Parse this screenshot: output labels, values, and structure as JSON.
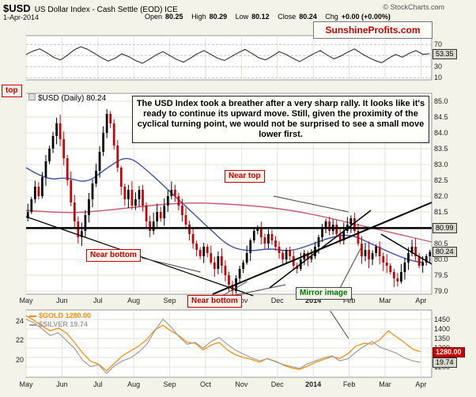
{
  "header": {
    "symbol": "$USD",
    "title": "US Dollar Index - Cash Settle (EOD) ICE",
    "copyright": "© StockCharts.com",
    "date": "1-Apr-2014",
    "quote": {
      "open_label": "Open",
      "open": "80.25",
      "high_label": "High",
      "high": "80.29",
      "low_label": "Low",
      "low": "80.12",
      "close_label": "Close",
      "close": "80.24",
      "chg_label": "Chg",
      "chg": "+0.00 (+0.00%)"
    },
    "brand": "SunshineProfits.com"
  },
  "legends": {
    "usd": "$USD (Daily) 80.24",
    "gold": "$GOLD 1280.00",
    "silver": "$SILVER 19.74"
  },
  "badges": {
    "rsi": "53.35",
    "hline": "80.99",
    "last": "80.24",
    "gold": "1280.00",
    "silver": "19.74"
  },
  "annotations": {
    "top_label": "top",
    "near_top": "Near top",
    "near_bottom_1": "Near bottom",
    "near_bottom_2": "Near bottom",
    "mirror": "Mirror image",
    "commentary": "The USD Index took a breather after a very sharp rally. It looks like it's ready to continue its upward move. Still, given the proximity of the cyclical turning point, we would not be surprised to see a small move lower first."
  },
  "colors": {
    "accent_red": "#cc0000",
    "candle_up": "#000000",
    "candle_down": "#cc0000",
    "ma_fast": "#3c52b0",
    "ma_slow": "#c85a70",
    "gold": "#ff8800",
    "silver": "#9e9e9e",
    "indicator": "#222222",
    "grid": "#e3e3d9",
    "panel_border": "#999999"
  },
  "chart_data": [
    {
      "type": "line",
      "name": "momentum-indicator",
      "position": "top-panel",
      "ylim": [
        86,
        6
      ],
      "yticks": [
        70,
        50,
        30,
        10
      ],
      "last_value": 53.35,
      "values": [
        52,
        58,
        62,
        55,
        47,
        42,
        50,
        60,
        66,
        61,
        54,
        46,
        40,
        45,
        53,
        48,
        41,
        36,
        43,
        51,
        57,
        50,
        43,
        38,
        45,
        53,
        59,
        52,
        45,
        41,
        48,
        55,
        61,
        54,
        46,
        42,
        49,
        57,
        52,
        45,
        39,
        46,
        53,
        59,
        51,
        44,
        49,
        56,
        62,
        54,
        47,
        41,
        37,
        45,
        52,
        47,
        54,
        59,
        52,
        53.35
      ]
    },
    {
      "type": "candlestick",
      "name": "usd-daily-price",
      "position": "main-panel",
      "title": "$USD (Daily) 80.24",
      "ylim": [
        85.25,
        78.9
      ],
      "yticks": [
        "85.0",
        "84.5",
        "84.0",
        "83.5",
        "83.0",
        "82.5",
        "82.0",
        "81.5",
        "81.0",
        "80.5",
        "80.0",
        "79.5",
        "79.0"
      ],
      "first_open": 81.3,
      "last_close": 80.24,
      "closes": [
        81.5,
        81.9,
        82.3,
        82.0,
        82.6,
        83.1,
        83.5,
        83.9,
        84.3,
        83.8,
        83.2,
        82.5,
        81.8,
        81.2,
        80.7,
        80.9,
        81.4,
        81.9,
        82.4,
        82.8,
        83.4,
        84.0,
        84.6,
        84.3,
        83.6,
        82.9,
        82.3,
        81.9,
        82.2,
        81.7,
        81.9,
        82.2,
        81.7,
        81.2,
        80.9,
        81.2,
        81.5,
        81.3,
        81.7,
        82.0,
        82.2,
        82.0,
        81.7,
        81.4,
        81.1,
        80.8,
        80.5,
        80.3,
        80.1,
        80.4,
        80.2,
        79.9,
        79.7,
        80.1,
        79.8,
        79.5,
        79.2,
        79.0,
        79.4,
        79.7,
        79.9,
        80.2,
        80.6,
        80.9,
        81.0,
        80.7,
        80.5,
        80.8,
        80.6,
        80.4,
        80.2,
        80.0,
        80.3,
        80.1,
        79.8,
        79.7,
        80.0,
        80.2,
        80.0,
        80.1,
        80.4,
        80.7,
        81.0,
        81.2,
        80.9,
        81.1,
        80.8,
        80.6,
        80.9,
        81.1,
        81.3,
        80.9,
        80.5,
        80.1,
        80.3,
        80.0,
        80.2,
        80.4,
        80.1,
        79.9,
        79.8,
        79.6,
        79.4,
        79.3,
        79.6,
        79.9,
        80.2,
        80.4,
        80.1,
        79.8,
        79.9,
        80.1,
        80.24
      ],
      "month_ticks": [
        {
          "label": "May",
          "i": 0
        },
        {
          "label": "Jun",
          "i": 10
        },
        {
          "label": "Jul",
          "i": 20
        },
        {
          "label": "Aug",
          "i": 30
        },
        {
          "label": "Sep",
          "i": 40
        },
        {
          "label": "Oct",
          "i": 50
        },
        {
          "label": "Nov",
          "i": 60
        },
        {
          "label": "Dec",
          "i": 70
        },
        {
          "label": "2014",
          "i": 80,
          "bold": true
        },
        {
          "label": "Feb",
          "i": 90
        },
        {
          "label": "Mar",
          "i": 100
        },
        {
          "label": "Apr",
          "i": 110
        }
      ],
      "ma_fast_points": [
        [
          0,
          82.9
        ],
        [
          0.05,
          82.5
        ],
        [
          0.1,
          82.6
        ],
        [
          0.15,
          82.4
        ],
        [
          0.2,
          82.9
        ],
        [
          0.25,
          83.3
        ],
        [
          0.3,
          82.8
        ],
        [
          0.35,
          82.2
        ],
        [
          0.4,
          81.6
        ],
        [
          0.45,
          81.0
        ],
        [
          0.5,
          80.4
        ],
        [
          0.55,
          80.25
        ],
        [
          0.6,
          80.35
        ],
        [
          0.65,
          80.25
        ],
        [
          0.7,
          80.45
        ],
        [
          0.75,
          80.7
        ],
        [
          0.8,
          80.8
        ],
        [
          0.85,
          80.5
        ],
        [
          0.9,
          80.2
        ],
        [
          0.95,
          79.95
        ],
        [
          0.98,
          79.9
        ]
      ],
      "ma_slow_points": [
        [
          0,
          81.55
        ],
        [
          0.1,
          81.45
        ],
        [
          0.2,
          81.55
        ],
        [
          0.3,
          81.7
        ],
        [
          0.4,
          81.8
        ],
        [
          0.5,
          81.75
        ],
        [
          0.6,
          81.65
        ],
        [
          0.7,
          81.45
        ],
        [
          0.8,
          81.15
        ],
        [
          0.9,
          80.85
        ],
        [
          1,
          80.55
        ]
      ],
      "hline": {
        "value": 80.99,
        "w": 2.5
      },
      "trendlines": [
        {
          "x1": 0.46,
          "v1": 78.9,
          "x2": 1.0,
          "v2": 81.8,
          "w": 2
        },
        {
          "x1": 0.0,
          "v1": 81.35,
          "x2": 0.56,
          "v2": 78.85,
          "w": 1.2
        },
        {
          "x1": 0.6,
          "v1": 79.1,
          "x2": 0.85,
          "v2": 81.55,
          "w": 1.5
        },
        {
          "x1": 0.875,
          "v1": 80.8,
          "x2": 1.0,
          "v2": 79.85,
          "w": 1.5
        }
      ],
      "pointer_lines": [
        {
          "x1": 0.61,
          "v1": 82.0,
          "x2": 0.795,
          "v2": 81.5
        },
        {
          "x1": 0.285,
          "v1": 80.05,
          "x2": 0.43,
          "v2": 79.6
        },
        {
          "x1": 0.47,
          "v1": 78.75,
          "x2": 0.545,
          "v2": 79.3
        },
        {
          "x1": 0.47,
          "v1": 78.75,
          "x2": 0.64,
          "v2": 79.2
        },
        {
          "x1": 0.77,
          "v1": 79.0,
          "x2": 0.825,
          "v2": 80.35
        }
      ]
    },
    {
      "type": "line",
      "name": "gold-silver-overlay",
      "position": "bottom-panel",
      "right_ylim": [
        1500,
        1146
      ],
      "right_yticks": [
        1450,
        1400,
        1350,
        1300,
        1250,
        1200
      ],
      "left_ylim": [
        25.14,
        18.2
      ],
      "left_yticks": [
        24,
        22,
        20
      ],
      "series": [
        {
          "name": "$GOLD",
          "axis": "right",
          "last": 1280.0,
          "values": [
            1470,
            1445,
            1415,
            1390,
            1405,
            1380,
            1330,
            1275,
            1230,
            1215,
            1180,
            1220,
            1260,
            1285,
            1310,
            1345,
            1395,
            1420,
            1390,
            1365,
            1330,
            1325,
            1290,
            1315,
            1330,
            1290,
            1265,
            1250,
            1240,
            1225,
            1245,
            1230,
            1210,
            1195,
            1187,
            1205,
            1225,
            1240,
            1255,
            1245,
            1270,
            1310,
            1325,
            1320,
            1345,
            1390,
            1360,
            1330,
            1295,
            1280
          ]
        },
        {
          "name": "$SILVER",
          "axis": "left",
          "last": 19.74,
          "values": [
            24.2,
            23.8,
            23.2,
            22.5,
            22.8,
            22.0,
            21.2,
            20.0,
            19.3,
            19.5,
            18.6,
            19.4,
            19.9,
            20.2,
            20.8,
            21.6,
            23.0,
            24.2,
            23.4,
            22.4,
            21.6,
            21.8,
            21.2,
            21.9,
            22.3,
            21.6,
            21.0,
            20.6,
            20.2,
            19.9,
            20.1,
            19.8,
            19.5,
            19.3,
            19.1,
            19.6,
            19.9,
            20.2,
            20.4,
            19.9,
            20.1,
            20.8,
            21.4,
            21.9,
            21.3,
            21.0,
            20.7,
            20.2,
            19.9,
            19.74
          ]
        }
      ],
      "pointer_lines": [
        {
          "x1": 0.75,
          "v1": 1495,
          "x2": 0.795,
          "v2": 1350
        }
      ]
    }
  ]
}
